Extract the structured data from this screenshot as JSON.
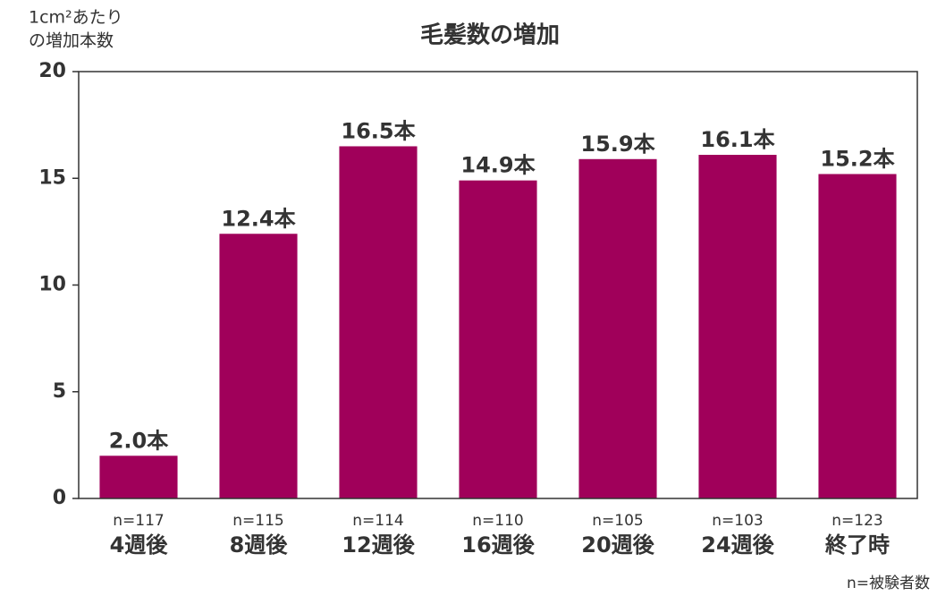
{
  "chart_data": {
    "type": "bar",
    "title": "毛髪数の増加",
    "y_label": [
      "1cm²あたり",
      "の増加本数"
    ],
    "categories": [
      "4週後",
      "8週後",
      "12週後",
      "16週後",
      "20週後",
      "24週後",
      "終了時"
    ],
    "sample_sizes": [
      "n=117",
      "n=115",
      "n=114",
      "n=110",
      "n=105",
      "n=103",
      "n=123"
    ],
    "values": [
      2.0,
      12.4,
      16.5,
      14.9,
      15.9,
      16.1,
      15.2
    ],
    "value_labels": [
      "2.0本",
      "12.4本",
      "16.5本",
      "14.9本",
      "15.9本",
      "16.1本",
      "15.2本"
    ],
    "color": "#a0005a",
    "ylim": [
      0,
      20
    ],
    "yticks": [
      0,
      5,
      10,
      15,
      20
    ],
    "footnote": "n=被験者数"
  }
}
